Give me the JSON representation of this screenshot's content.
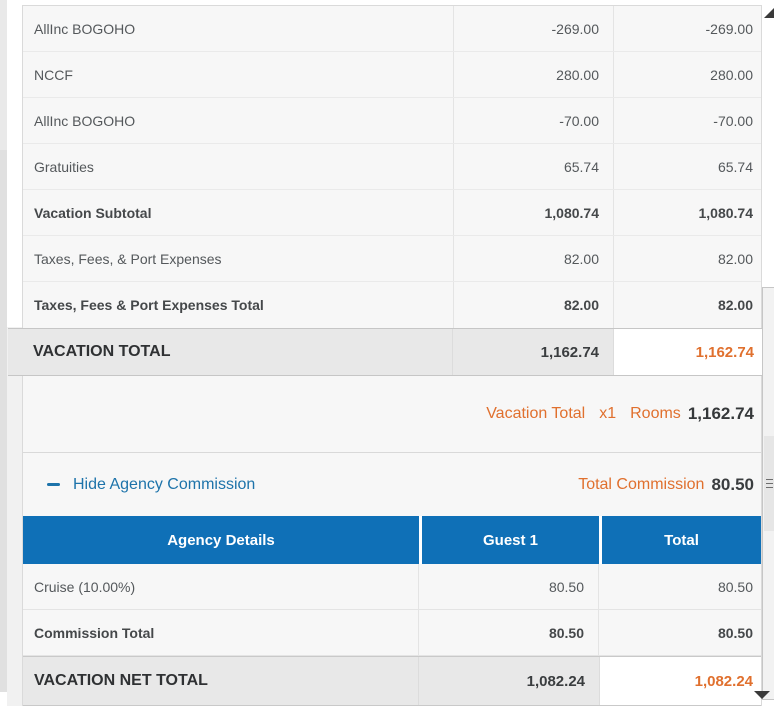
{
  "colors": {
    "accent_orange": "#e0702e",
    "header_blue": "#0f70b7",
    "link_blue": "#1d73aa",
    "total_row_gray": "#e8e8e8"
  },
  "pricing_table": {
    "rows": [
      {
        "label": "AllInc BOGOHO",
        "guest1": "-269.00",
        "total": "-269.00"
      },
      {
        "label": "NCCF",
        "guest1": "280.00",
        "total": "280.00"
      },
      {
        "label": "AllInc BOGOHO",
        "guest1": "-70.00",
        "total": "-70.00"
      },
      {
        "label": "Gratuities",
        "guest1": "65.74",
        "total": "65.74"
      },
      {
        "label": "Vacation Subtotal",
        "guest1": "1,080.74",
        "total": "1,080.74"
      },
      {
        "label": "Taxes, Fees, & Port Expenses",
        "guest1": "82.00",
        "total": "82.00"
      },
      {
        "label": "Taxes, Fees & Port Expenses Total",
        "guest1": "82.00",
        "total": "82.00"
      }
    ],
    "vacation_total": {
      "label": "VACATION TOTAL",
      "guest1": "1,162.74",
      "total": "1,162.74"
    }
  },
  "rooms_summary": {
    "label": "Vacation Total",
    "multiplier": "x1",
    "rooms_label": "Rooms",
    "value": "1,162.74"
  },
  "commission_toggle": {
    "link_label": "Hide Agency Commission",
    "total_label": "Total Commission",
    "total_value": "80.50"
  },
  "commission_table": {
    "headers": [
      "Agency Details",
      "Guest 1",
      "Total"
    ],
    "rows": [
      {
        "label": "Cruise (10.00%)",
        "guest1": "80.50",
        "total": "80.50"
      },
      {
        "label": "Commission Total",
        "guest1": "80.50",
        "total": "80.50"
      }
    ],
    "net_total": {
      "label": "VACATION NET TOTAL",
      "guest1": "1,082.24",
      "total": "1,082.24"
    }
  }
}
